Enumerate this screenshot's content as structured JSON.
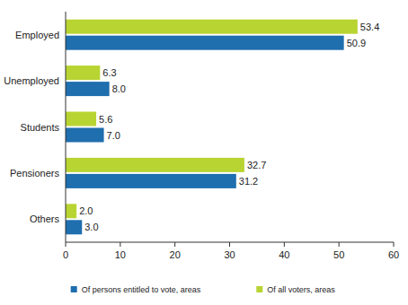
{
  "chart_data": {
    "type": "bar",
    "orientation": "horizontal",
    "categories": [
      "Employed",
      "Unemployed",
      "Students",
      "Pensioners",
      "Others"
    ],
    "series": [
      {
        "name": "Of persons entitled to vote, areas",
        "color": "#1f6eae",
        "values": [
          50.9,
          8.0,
          7.0,
          31.2,
          3.0
        ],
        "value_labels": [
          "50.9",
          "8.0",
          "7.0",
          "31.2",
          "3.0"
        ]
      },
      {
        "name": "Of all voters, areas",
        "color": "#b8d432",
        "values": [
          53.4,
          6.3,
          5.6,
          32.7,
          2.0
        ],
        "value_labels": [
          "53.4",
          "6.3",
          "5.6",
          "32.7",
          "2.0"
        ]
      }
    ],
    "xlim": [
      0,
      60
    ],
    "xticks": [
      0,
      10,
      20,
      30,
      40,
      50,
      60
    ],
    "grid": false,
    "data_labels": true,
    "legend": "bottom"
  }
}
